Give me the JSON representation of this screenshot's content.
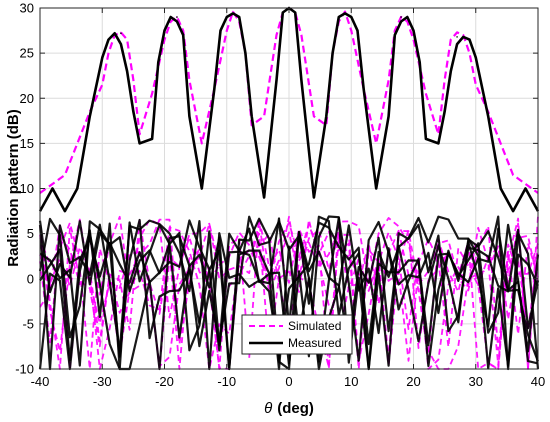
{
  "chart_data": {
    "type": "line",
    "title": "",
    "xlabel_symbol": "θ",
    "xlabel_unit": "(deg)",
    "ylabel": "Radiation pattern (dB)",
    "xlim": [
      -40,
      40
    ],
    "ylim": [
      -10,
      30
    ],
    "xticks": [
      -40,
      -30,
      -20,
      -10,
      0,
      10,
      20,
      30,
      40
    ],
    "yticks": [
      -10,
      -5,
      0,
      5,
      10,
      15,
      20,
      25,
      30
    ],
    "grid": true,
    "legend_position": "bottom-center",
    "beam_peaks_deg": [
      -27,
      -18,
      -9,
      0,
      9,
      18,
      27
    ],
    "series": [
      {
        "name": "Simulated",
        "color": "#ff00ff",
        "style": "dashed",
        "peak_db": [
          27.3,
          29.0,
          29.6,
          30.0,
          29.6,
          29.0,
          27.3
        ],
        "x": [
          -40,
          -36,
          -32,
          -30,
          -29,
          -28,
          -27,
          -26,
          -25,
          -24,
          -22,
          -20,
          -19,
          -18,
          -17,
          -16,
          -14,
          -12,
          -10,
          -9,
          -8,
          -7,
          -6,
          -4,
          -2,
          -1,
          0,
          1,
          2,
          4,
          6,
          7,
          8,
          9,
          10,
          12,
          14,
          16,
          17,
          18,
          19,
          20,
          22,
          24,
          25,
          26,
          27,
          28,
          29,
          30,
          32,
          36,
          40
        ],
        "y": [
          9.5,
          11.5,
          18.5,
          21.5,
          25.0,
          27.0,
          27.3,
          26.5,
          22.0,
          16.0,
          20.5,
          26.5,
          28.5,
          29.0,
          27.5,
          22.0,
          15.0,
          21.0,
          27.5,
          29.6,
          28.5,
          25.0,
          17.0,
          18.0,
          27.0,
          29.5,
          30.0,
          29.5,
          27.0,
          18.0,
          17.0,
          25.0,
          28.5,
          29.6,
          27.5,
          21.0,
          15.0,
          22.0,
          27.5,
          29.0,
          28.5,
          26.5,
          20.5,
          16.0,
          22.0,
          26.5,
          27.3,
          27.0,
          25.0,
          21.5,
          18.5,
          11.5,
          9.5
        ]
      },
      {
        "name": "Measured",
        "color": "#000000",
        "style": "solid",
        "peak_db": [
          27.2,
          29.0,
          29.4,
          30.0,
          29.4,
          29.0,
          26.8
        ],
        "x": [
          -40,
          -38,
          -36,
          -34,
          -32,
          -30,
          -29,
          -28,
          -27,
          -26,
          -25,
          -24,
          -22,
          -21,
          -20,
          -19,
          -18,
          -17,
          -16,
          -14,
          -12,
          -11,
          -10,
          -9,
          -8,
          -7,
          -6,
          -4,
          -2,
          -1,
          0,
          1,
          2,
          4,
          6,
          7,
          8,
          9,
          10,
          11,
          12,
          14,
          16,
          17,
          18,
          19,
          20,
          21,
          22,
          24,
          25,
          26,
          27,
          28,
          29,
          30,
          32,
          34,
          36,
          38,
          40
        ],
        "y": [
          7.5,
          10.0,
          7.5,
          10.0,
          18.0,
          24.5,
          26.5,
          27.2,
          26.0,
          23.0,
          18.5,
          15.0,
          15.5,
          24.0,
          27.5,
          29.0,
          28.5,
          27.0,
          18.0,
          10.0,
          21.0,
          27.5,
          29.0,
          29.4,
          29.0,
          25.0,
          18.0,
          9.0,
          22.0,
          29.5,
          30.0,
          29.5,
          22.0,
          9.0,
          18.0,
          25.0,
          29.0,
          29.4,
          29.0,
          27.5,
          21.0,
          10.0,
          18.0,
          27.0,
          28.5,
          29.0,
          27.5,
          24.0,
          15.5,
          15.0,
          18.5,
          23.0,
          26.0,
          26.8,
          26.5,
          24.5,
          18.0,
          10.0,
          7.5,
          10.0,
          7.5
        ]
      }
    ]
  }
}
